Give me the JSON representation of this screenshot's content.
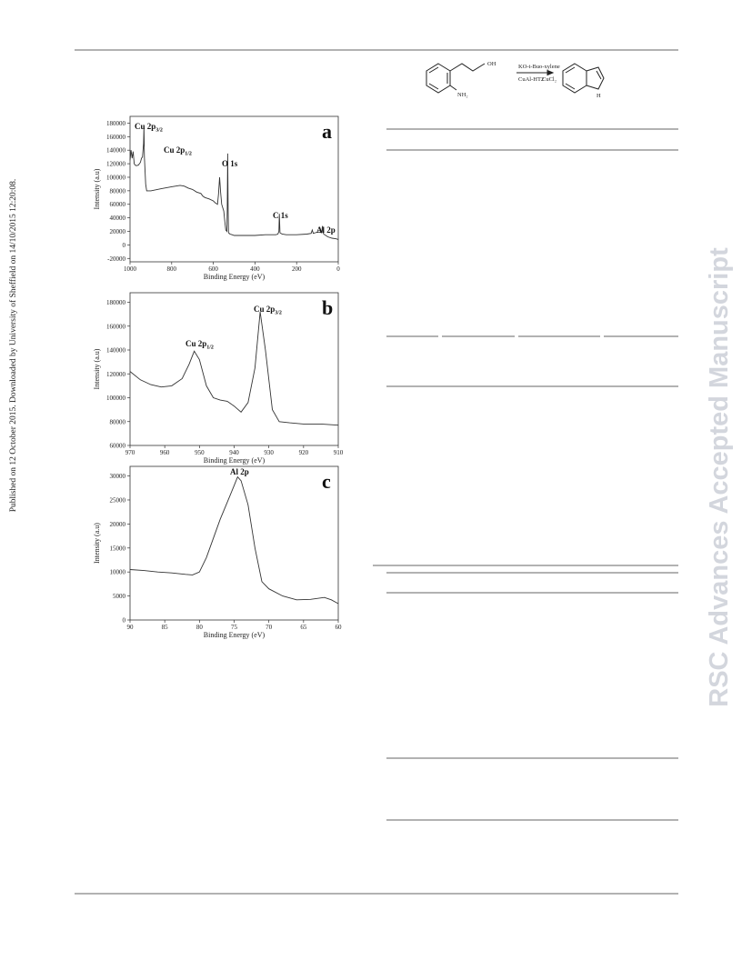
{
  "side_note": "Published on 12 October 2015. Downloaded by University of Sheffield on 14/10/2015 12:20:08.",
  "watermark": "RSC Advances Accepted Manuscript",
  "scheme": {
    "oh": "OH",
    "nh2": "NH₂",
    "reagent_1": "KO-t-Bu",
    "solvent": "o-xylene",
    "catalyst": "CuAl-HT2",
    "reagent_2": "CuCl₂",
    "h": "H"
  },
  "chart_data": [
    {
      "type": "line",
      "panel": "a",
      "xlabel": "Binding Energy (eV)",
      "ylabel": "Intensity (a.u)",
      "xlim": [
        1000,
        0
      ],
      "ylim": [
        -25000,
        190000
      ],
      "xticks": [
        1000,
        800,
        600,
        400,
        200,
        0
      ],
      "yticks": [
        -20000,
        0,
        20000,
        40000,
        60000,
        80000,
        100000,
        120000,
        140000,
        160000,
        180000
      ],
      "annotations": [
        {
          "text": "Cu 2p",
          "sub": "3/2"
        },
        {
          "text": "Cu 2p",
          "sub": "1/2"
        },
        {
          "text": "O 1s"
        },
        {
          "text": "C 1s"
        },
        {
          "text": "Al 2p"
        }
      ],
      "x": [
        1000,
        995,
        990,
        985,
        980,
        975,
        970,
        960,
        950,
        945,
        940,
        935,
        933,
        931,
        925,
        920,
        900,
        850,
        800,
        760,
        740,
        720,
        700,
        680,
        660,
        650,
        640,
        620,
        600,
        590,
        580,
        575,
        570,
        565,
        560,
        550,
        545,
        540,
        535,
        533,
        531,
        529,
        527,
        520,
        510,
        500,
        450,
        400,
        350,
        300,
        290,
        285,
        283,
        280,
        270,
        250,
        200,
        150,
        130,
        125,
        120,
        110,
        100,
        90,
        80,
        76,
        74,
        70,
        50,
        30,
        10,
        0
      ],
      "series": [
        {
          "color": "#333333",
          "values": [
            125000,
            140000,
            128000,
            138000,
            120000,
            118000,
            117000,
            118000,
            122000,
            128000,
            130000,
            150000,
            175000,
            130000,
            90000,
            80000,
            80000,
            83000,
            86000,
            88000,
            87000,
            84000,
            82000,
            78000,
            76000,
            72000,
            70000,
            68000,
            65000,
            62000,
            60000,
            75000,
            100000,
            78000,
            60000,
            50000,
            35000,
            22000,
            20000,
            50000,
            135000,
            50000,
            18000,
            16000,
            15000,
            14000,
            14000,
            14000,
            15000,
            15000,
            16000,
            20000,
            46000,
            18000,
            16000,
            15000,
            15000,
            16000,
            17000,
            22000,
            17000,
            18000,
            19000,
            19000,
            18000,
            28000,
            19000,
            16000,
            12000,
            10000,
            9000,
            8000
          ]
        }
      ]
    },
    {
      "type": "line",
      "panel": "b",
      "xlabel": "Binding Energy (eV)",
      "ylabel": "Intensity (a.u)",
      "xlim": [
        970,
        910
      ],
      "ylim": [
        60000,
        188000
      ],
      "xticks": [
        970,
        960,
        950,
        940,
        930,
        920,
        910
      ],
      "yticks": [
        60000,
        80000,
        100000,
        120000,
        140000,
        160000,
        180000
      ],
      "annotations": [
        {
          "text": "Cu 2p",
          "sub": "1/2"
        },
        {
          "text": "Cu 2p",
          "sub": "3/2"
        }
      ],
      "x": [
        970,
        967,
        964,
        961,
        958,
        955,
        953,
        951.5,
        950,
        948,
        946,
        944,
        942,
        940,
        938,
        936,
        934,
        932.5,
        931,
        929,
        927,
        924,
        920,
        915,
        910
      ],
      "series": [
        {
          "color": "#333333",
          "values": [
            122000,
            115000,
            111000,
            109000,
            110000,
            116000,
            128000,
            139000,
            132000,
            110000,
            100000,
            98000,
            97000,
            93000,
            88000,
            96000,
            125000,
            172000,
            140000,
            90000,
            80000,
            79000,
            78000,
            78000,
            77000
          ]
        }
      ]
    },
    {
      "type": "line",
      "panel": "c",
      "xlabel": "Binding Energy (eV)",
      "ylabel": "Intensity (a.u)",
      "xlim": [
        90,
        60
      ],
      "ylim": [
        0,
        32000
      ],
      "xticks": [
        90,
        85,
        80,
        75,
        70,
        65,
        60
      ],
      "yticks": [
        0,
        5000,
        10000,
        15000,
        20000,
        25000,
        30000
      ],
      "annotations": [
        {
          "text": "Al 2p"
        }
      ],
      "x": [
        90,
        88,
        86,
        84,
        82,
        81,
        80,
        79,
        78,
        77,
        76,
        75,
        74.5,
        74,
        73,
        72,
        71,
        70,
        68,
        66,
        64,
        62,
        61,
        60
      ],
      "series": [
        {
          "color": "#333333",
          "values": [
            10500,
            10300,
            10000,
            9800,
            9500,
            9400,
            10000,
            13000,
            17000,
            21000,
            24500,
            28000,
            29800,
            29000,
            24000,
            15000,
            8000,
            6500,
            5000,
            4200,
            4300,
            4700,
            4200,
            3400
          ]
        }
      ]
    }
  ]
}
